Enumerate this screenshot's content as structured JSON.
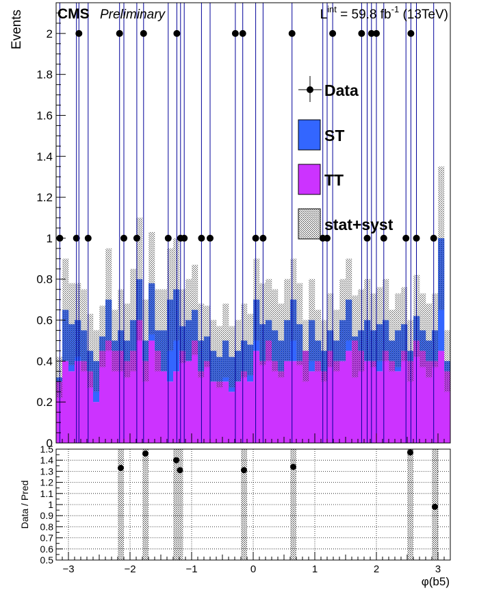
{
  "header": {
    "cms_label": "CMS",
    "preliminary_label": "Preliminary",
    "lumi_prefix": "L",
    "lumi_sup": "int",
    "lumi_value": " = 59.8 fb",
    "lumi_exp": "-1",
    "lumi_energy": " (13TeV)"
  },
  "legend": {
    "data_label": "Data",
    "st_label": "ST",
    "tt_label": "TT",
    "unc_label": "stat+syst"
  },
  "colors": {
    "tt": "#cc33ff",
    "st": "#3366ff",
    "data": "#000000",
    "error_bar": "#000099",
    "unc_hatch": "#555555"
  },
  "chart_data": [
    {
      "type": "histogram",
      "panel": "main",
      "ylabel": "Events",
      "xlim": [
        -3.2,
        3.2
      ],
      "ylim": [
        0,
        2.15
      ],
      "yticks": [
        0,
        0.2,
        0.4,
        0.6,
        0.8,
        1,
        1.2,
        1.4,
        1.6,
        1.8,
        2
      ],
      "bin_width": 0.1,
      "stack": [
        {
          "name": "TT",
          "values": [
            0.3,
            0.4,
            0.35,
            0.4,
            0.4,
            0.35,
            0.2,
            0.45,
            0.5,
            0.45,
            0.45,
            0.4,
            0.45,
            0.6,
            0.4,
            0.5,
            0.45,
            0.35,
            0.3,
            0.35,
            0.45,
            0.4,
            0.5,
            0.35,
            0.4,
            0.3,
            0.3,
            0.3,
            0.25,
            0.3,
            0.35,
            0.3,
            0.45,
            0.4,
            0.5,
            0.4,
            0.35,
            0.4,
            0.4,
            0.4,
            0.45,
            0.35,
            0.4,
            0.35,
            0.45,
            0.4,
            0.4,
            0.45,
            0.5,
            0.45,
            0.4,
            0.4,
            0.35,
            0.45,
            0.4,
            0.35,
            0.45,
            0.4,
            0.5,
            0.45,
            0.4,
            0.4,
            0.45,
            0.35
          ]
        },
        {
          "name": "ST",
          "values": [
            0.02,
            0.03,
            0.03,
            0.05,
            0.02,
            0.05,
            0.03,
            0.02,
            0.15,
            0.04,
            0.03,
            0.03,
            0.02,
            0.03,
            0.04,
            0.03,
            0.02,
            0.03,
            0.02,
            0.04,
            0.02,
            0.03,
            0.02,
            0.02,
            0.05,
            0.03,
            0.03,
            0.02,
            0.02,
            0.02,
            0.03,
            0.02,
            0.02,
            0.03,
            0.02,
            0.03,
            0.02,
            0.03,
            0.04,
            0.03,
            0.02,
            0.02,
            0.03,
            0.02,
            0.02,
            0.03,
            0.02,
            0.03,
            0.02,
            0.03,
            0.02,
            0.02,
            0.03,
            0.03,
            0.02,
            0.03,
            0.02,
            0.02,
            0.03,
            0.03,
            0.02,
            0.03,
            0.15,
            0.02
          ]
        }
      ],
      "totals": [
        0.32,
        0.65,
        0.58,
        0.6,
        0.55,
        0.45,
        0.4,
        0.52,
        0.7,
        0.5,
        0.55,
        0.5,
        0.6,
        0.8,
        0.5,
        0.78,
        0.55,
        0.55,
        0.7,
        0.75,
        0.57,
        0.6,
        0.65,
        0.5,
        0.52,
        0.45,
        0.42,
        0.5,
        0.42,
        0.45,
        0.5,
        0.48,
        0.7,
        0.58,
        0.6,
        0.55,
        0.5,
        0.6,
        0.7,
        0.58,
        0.45,
        0.6,
        0.5,
        0.45,
        0.55,
        0.5,
        0.6,
        0.7,
        0.52,
        0.55,
        0.6,
        0.55,
        0.58,
        0.6,
        0.5,
        0.55,
        0.58,
        0.45,
        0.62,
        0.55,
        0.5,
        0.55,
        1.0,
        0.4
      ],
      "unc": [
        0.1,
        0.25,
        0.2,
        0.18,
        0.2,
        0.18,
        0.15,
        0.15,
        0.25,
        0.15,
        0.2,
        0.18,
        0.25,
        0.3,
        0.2,
        0.25,
        0.2,
        0.2,
        0.25,
        0.25,
        0.18,
        0.2,
        0.22,
        0.18,
        0.15,
        0.15,
        0.15,
        0.18,
        0.15,
        0.15,
        0.18,
        0.15,
        0.2,
        0.2,
        0.2,
        0.2,
        0.18,
        0.2,
        0.2,
        0.2,
        0.15,
        0.2,
        0.15,
        0.15,
        0.18,
        0.15,
        0.2,
        0.2,
        0.2,
        0.2,
        0.2,
        0.18,
        0.18,
        0.2,
        0.15,
        0.18,
        0.18,
        0.15,
        0.2,
        0.18,
        0.18,
        0.18,
        0.35,
        0.15
      ],
      "data": {
        "x": [
          -3.14,
          -2.87,
          -2.83,
          -2.68,
          -2.17,
          -2.1,
          -1.89,
          -1.78,
          -1.38,
          -1.24,
          -1.18,
          -1.12,
          -0.84,
          -0.7,
          -0.29,
          -0.17,
          0.04,
          0.16,
          0.63,
          1.13,
          1.2,
          1.29,
          1.76,
          1.85,
          1.92,
          2.0,
          2.12,
          2.48,
          2.56,
          2.65,
          2.93
        ],
        "y": [
          1,
          1,
          2,
          1,
          2,
          1,
          1,
          2,
          1,
          2,
          1,
          1,
          1,
          1,
          2,
          2,
          1,
          1,
          2,
          1,
          1,
          2,
          2,
          1,
          2,
          2,
          1,
          1,
          2,
          1,
          1
        ]
      },
      "legend_position": "upper-right"
    },
    {
      "type": "scatter",
      "panel": "ratio",
      "ylabel": "Data / Pred",
      "xlabel": "φ(b5)",
      "xlim": [
        -3.2,
        3.2
      ],
      "ylim": [
        0.5,
        1.5
      ],
      "xticks": [
        -3,
        -2,
        -1,
        0,
        1,
        2,
        3
      ],
      "yticks": [
        0.5,
        0.6,
        0.7,
        0.8,
        0.9,
        1,
        1.1,
        1.2,
        1.3,
        1.4,
        1.5
      ],
      "grid": true,
      "x": [
        -2.15,
        -1.75,
        -1.25,
        -1.19,
        -0.15,
        0.65,
        2.55,
        2.95
      ],
      "y": [
        1.33,
        1.46,
        1.4,
        1.31,
        1.31,
        1.34,
        1.47,
        0.98
      ],
      "band_half_width": 0.05
    }
  ]
}
